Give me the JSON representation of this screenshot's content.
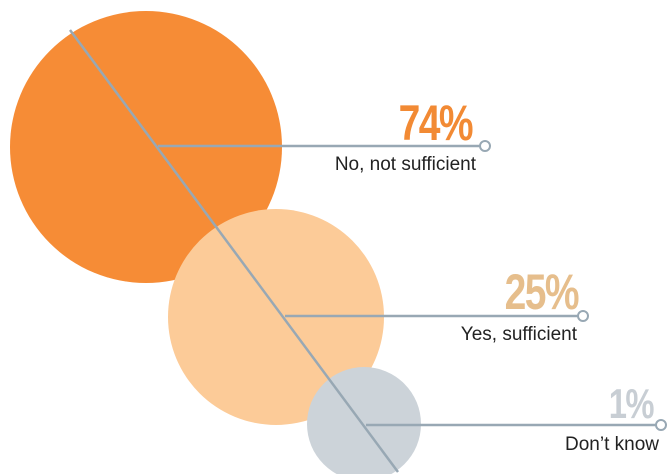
{
  "chart_data": {
    "type": "bubble",
    "categories": [
      "No, not sufficient",
      "Yes, sufficient",
      "Don’t know"
    ],
    "values": [
      74,
      25,
      1
    ],
    "value_labels": [
      "74%",
      "25%",
      "1%"
    ],
    "colors": {
      "slice_1": "#f68c36",
      "slice_2": "#fccb98",
      "slice_3": "#ccd3d9",
      "pct_1": "#f28a34",
      "pct_2": "#e6be8c",
      "pct_3": "#c8ced4",
      "leader_line": "#98a8b4"
    }
  }
}
